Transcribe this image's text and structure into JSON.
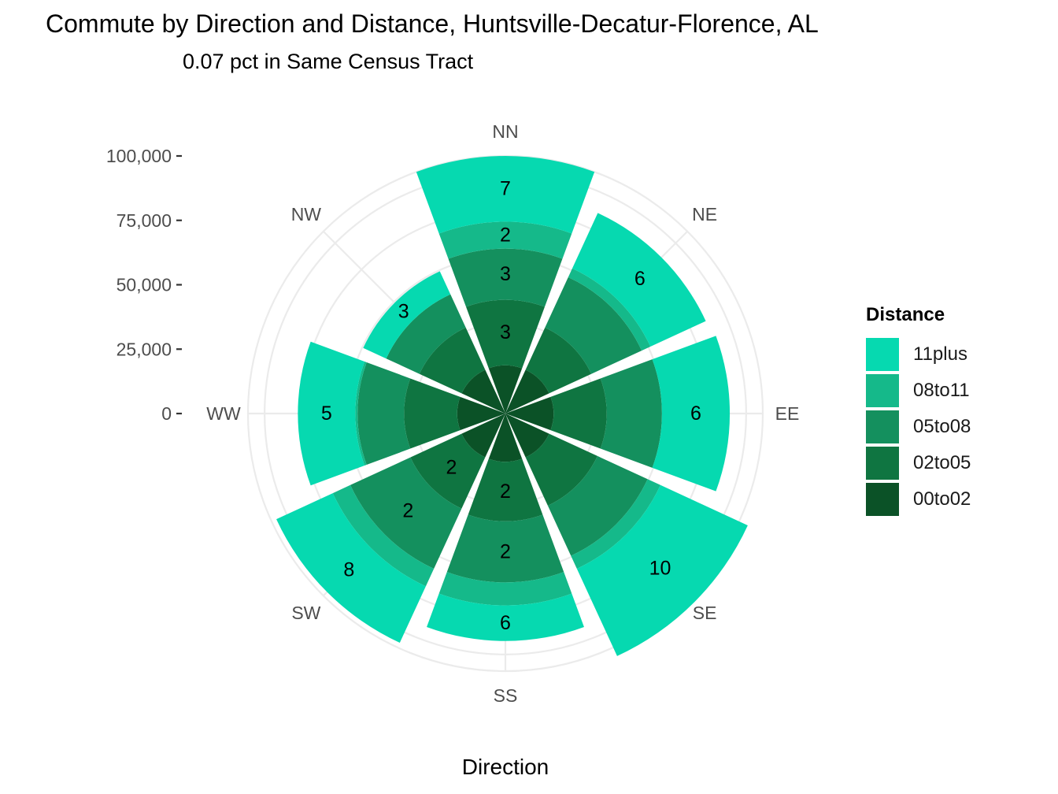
{
  "chart_data": {
    "type": "polar-stacked-bar",
    "title": "Commute by Direction and Distance, Huntsville-Decatur-Florence, AL",
    "subtitle": "0.07 pct in Same Census Tract",
    "xlabel": "Direction",
    "ylabel": "",
    "ylim": [
      0,
      100000
    ],
    "y_ticks": [
      "100,000",
      "75,000",
      "50,000",
      "25,000",
      "0"
    ],
    "y_tick_values": [
      100000,
      75000,
      50000,
      25000,
      0
    ],
    "categories": [
      "NN",
      "NE",
      "EE",
      "SE",
      "SS",
      "SW",
      "WW",
      "NW"
    ],
    "legend_title": "Distance",
    "legend_position": "right",
    "grid": true,
    "series": [
      {
        "name": "00to02",
        "color": "#0b5227",
        "values": [
          3500,
          3500,
          3500,
          3500,
          3500,
          3500,
          3500,
          3500
        ]
      },
      {
        "name": "02to05",
        "color": "#0f7541",
        "values": [
          16000,
          10000,
          12000,
          12000,
          14000,
          13000,
          12000,
          10000
        ]
      },
      {
        "name": "05to08",
        "color": "#14905e",
        "values": [
          21500,
          20500,
          21500,
          21500,
          25500,
          27500,
          17500,
          12500
        ]
      },
      {
        "name": "08to11",
        "color": "#15b98a",
        "values": [
          14500,
          4500,
          0,
          7000,
          12500,
          10500,
          1000,
          0
        ]
      },
      {
        "name": "11plus",
        "color": "#06d9b0",
        "values": [
          44500,
          35000,
          39000,
          63500,
          22500,
          41500,
          31000,
          11000
        ]
      }
    ],
    "data_labels": [
      {
        "category": "NN",
        "series": "11plus",
        "text": "7"
      },
      {
        "category": "NN",
        "series": "08to11",
        "text": "2"
      },
      {
        "category": "NN",
        "series": "05to08",
        "text": "3"
      },
      {
        "category": "NN",
        "series": "02to05",
        "text": "3"
      },
      {
        "category": "NE",
        "series": "11plus",
        "text": "6"
      },
      {
        "category": "EE",
        "series": "11plus",
        "text": "6"
      },
      {
        "category": "SE",
        "series": "11plus",
        "text": "10"
      },
      {
        "category": "SS",
        "series": "11plus",
        "text": "6"
      },
      {
        "category": "SS",
        "series": "05to08",
        "text": "2"
      },
      {
        "category": "SS",
        "series": "02to05",
        "text": "2"
      },
      {
        "category": "SW",
        "series": "11plus",
        "text": "8"
      },
      {
        "category": "SW",
        "series": "05to08",
        "text": "2"
      },
      {
        "category": "SW",
        "series": "02to05",
        "text": "2"
      },
      {
        "category": "WW",
        "series": "11plus",
        "text": "5"
      },
      {
        "category": "NW",
        "series": "11plus",
        "text": "3"
      }
    ]
  }
}
